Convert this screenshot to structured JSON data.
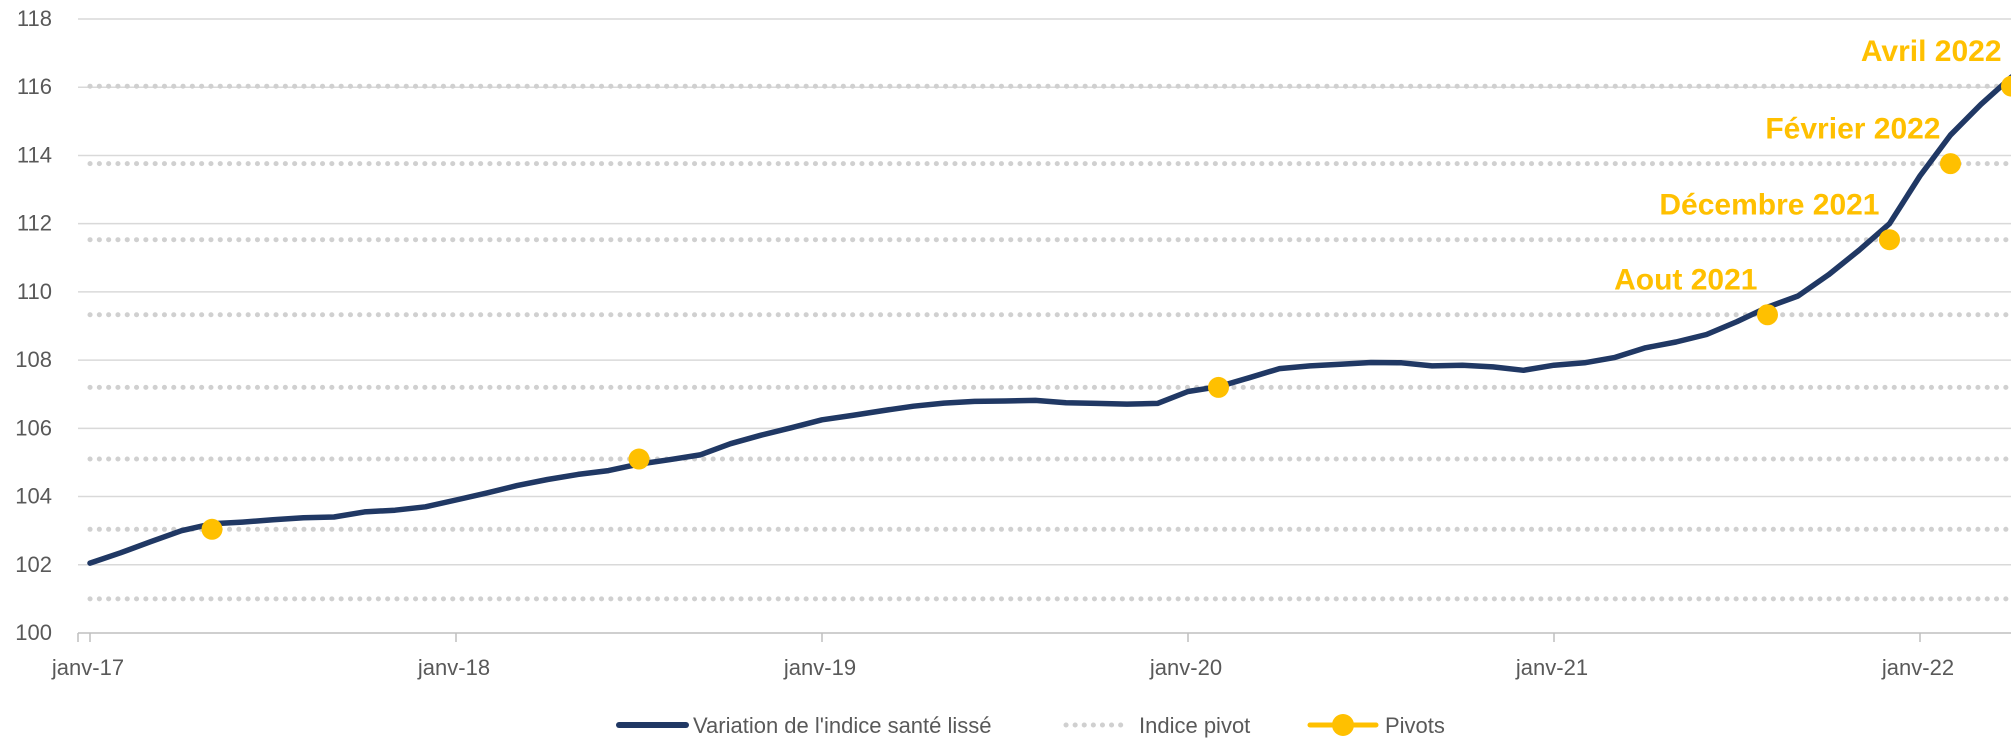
{
  "chart_data": {
    "type": "line",
    "title": "",
    "xlabel": "",
    "ylabel": "",
    "ylim": [
      100,
      118
    ],
    "yticks": [
      100,
      102,
      104,
      106,
      108,
      110,
      112,
      114,
      116,
      118
    ],
    "x_ticks": [
      {
        "label": "janv-17",
        "date": "2017-01"
      },
      {
        "label": "janv-18",
        "date": "2018-01"
      },
      {
        "label": "janv-19",
        "date": "2019-01"
      },
      {
        "label": "janv-20",
        "date": "2020-01"
      },
      {
        "label": "janv-21",
        "date": "2021-01"
      },
      {
        "label": "janv-22",
        "date": "2022-01"
      }
    ],
    "grid": true,
    "legend_position": "bottom",
    "colors": {
      "series": "#203864",
      "pivot": "#FFC000",
      "grid": "#D9D9D9",
      "pivot_line": "#D0D0D0"
    },
    "series": [
      {
        "name": "Variation de l'indice santé lissé",
        "style": "solid",
        "points": [
          [
            "2017-01",
            102.05
          ],
          [
            "2017-02",
            102.35
          ],
          [
            "2017-03",
            102.68
          ],
          [
            "2017-04",
            103.0
          ],
          [
            "2017-05",
            103.2
          ],
          [
            "2017-06",
            103.25
          ],
          [
            "2017-07",
            103.32
          ],
          [
            "2017-08",
            103.38
          ],
          [
            "2017-09",
            103.4
          ],
          [
            "2017-10",
            103.55
          ],
          [
            "2017-11",
            103.6
          ],
          [
            "2017-12",
            103.7
          ],
          [
            "2018-01",
            103.9
          ],
          [
            "2018-02",
            104.1
          ],
          [
            "2018-03",
            104.32
          ],
          [
            "2018-04",
            104.5
          ],
          [
            "2018-05",
            104.65
          ],
          [
            "2018-06",
            104.76
          ],
          [
            "2018-07",
            104.95
          ],
          [
            "2018-08",
            105.08
          ],
          [
            "2018-09",
            105.22
          ],
          [
            "2018-10",
            105.55
          ],
          [
            "2018-11",
            105.8
          ],
          [
            "2018-12",
            106.02
          ],
          [
            "2019-01",
            106.25
          ],
          [
            "2019-02",
            106.38
          ],
          [
            "2019-03",
            106.52
          ],
          [
            "2019-04",
            106.65
          ],
          [
            "2019-05",
            106.74
          ],
          [
            "2019-06",
            106.79
          ],
          [
            "2019-07",
            106.8
          ],
          [
            "2019-08",
            106.82
          ],
          [
            "2019-09",
            106.75
          ],
          [
            "2019-10",
            106.73
          ],
          [
            "2019-11",
            106.71
          ],
          [
            "2019-12",
            106.73
          ],
          [
            "2020-01",
            107.08
          ],
          [
            "2020-02",
            107.22
          ],
          [
            "2020-03",
            107.48
          ],
          [
            "2020-04",
            107.75
          ],
          [
            "2020-05",
            107.83
          ],
          [
            "2020-06",
            107.88
          ],
          [
            "2020-07",
            107.93
          ],
          [
            "2020-08",
            107.92
          ],
          [
            "2020-09",
            107.83
          ],
          [
            "2020-10",
            107.85
          ],
          [
            "2020-11",
            107.8
          ],
          [
            "2020-12",
            107.7
          ],
          [
            "2021-01",
            107.85
          ],
          [
            "2021-02",
            107.92
          ],
          [
            "2021-03",
            108.08
          ],
          [
            "2021-04",
            108.36
          ],
          [
            "2021-05",
            108.53
          ],
          [
            "2021-06",
            108.75
          ],
          [
            "2021-07",
            109.13
          ],
          [
            "2021-08",
            109.55
          ],
          [
            "2021-09",
            109.88
          ],
          [
            "2021-10",
            110.5
          ],
          [
            "2021-11",
            111.22
          ],
          [
            "2021-12",
            112.0
          ],
          [
            "2022-01",
            113.4
          ],
          [
            "2022-02",
            114.6
          ],
          [
            "2022-03",
            115.5
          ],
          [
            "2022-04",
            116.3
          ]
        ]
      },
      {
        "name": "Indice pivot",
        "style": "dotted",
        "levels": [
          101.0,
          103.04,
          105.1,
          107.2,
          109.33,
          111.53,
          113.76,
          116.03
        ]
      },
      {
        "name": "Pivots",
        "style": "markers",
        "points": [
          {
            "date": "2017-05",
            "value": 103.04,
            "label": ""
          },
          {
            "date": "2018-07",
            "value": 105.1,
            "label": ""
          },
          {
            "date": "2020-02",
            "value": 107.2,
            "label": ""
          },
          {
            "date": "2021-08",
            "value": 109.33,
            "label": "Aout 2021"
          },
          {
            "date": "2021-12",
            "value": 111.53,
            "label": "Décembre 2021"
          },
          {
            "date": "2022-02",
            "value": 113.76,
            "label": "Février 2022"
          },
          {
            "date": "2022-04",
            "value": 116.03,
            "label": "Avril 2022"
          }
        ]
      }
    ]
  },
  "legend": {
    "items": [
      {
        "label": "Variation de l'indice santé lissé"
      },
      {
        "label": "Indice pivot"
      },
      {
        "label": "Pivots"
      }
    ]
  }
}
